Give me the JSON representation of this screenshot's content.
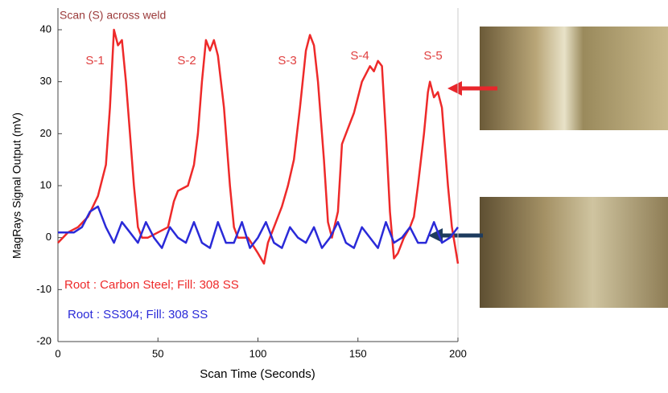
{
  "chart_data": {
    "type": "line",
    "title": "Scan (S) across weld",
    "x_label": "Scan Time (Seconds)",
    "y_label": "MagRays Signal Output (mV)",
    "annotations": [
      "S-1",
      "S-2",
      "S-3",
      "S-4",
      "S-5"
    ],
    "xlim": [
      0,
      200
    ],
    "ylim": [
      -20,
      40
    ],
    "xticks": [
      0,
      50,
      100,
      150,
      200
    ],
    "yticks": [
      -20,
      -10,
      0,
      10,
      20,
      30,
      40
    ],
    "series": [
      {
        "name": "Root : Carbon Steel; Fill: 308 SS",
        "color": "#ee2a2a",
        "x": [
          0,
          5,
          10,
          15,
          20,
          24,
          26,
          28,
          30,
          32,
          34,
          36,
          38,
          40,
          42,
          45,
          50,
          55,
          58,
          60,
          65,
          68,
          70,
          72,
          74,
          76,
          78,
          80,
          83,
          86,
          88,
          90,
          95,
          100,
          103,
          105,
          108,
          112,
          115,
          118,
          121,
          124,
          126,
          128,
          130,
          133,
          135,
          137,
          140,
          142,
          145,
          148,
          152,
          156,
          158,
          160,
          162,
          164,
          166,
          168,
          170,
          173,
          176,
          178,
          180,
          183,
          185,
          186,
          188,
          190,
          192,
          195,
          197,
          200
        ],
        "values": [
          -1,
          1,
          2,
          4,
          8,
          14,
          25,
          40,
          37,
          38,
          30,
          20,
          10,
          2,
          0,
          0,
          1,
          2,
          7,
          9,
          10,
          14,
          20,
          30,
          38,
          36,
          38,
          35,
          25,
          10,
          2,
          0,
          0,
          -3,
          -5,
          -1,
          2,
          6,
          10,
          15,
          25,
          36,
          39,
          37,
          30,
          15,
          3,
          0,
          5,
          18,
          21,
          24,
          30,
          33,
          32,
          34,
          33,
          20,
          5,
          -4,
          -3,
          0,
          2,
          4,
          10,
          20,
          28,
          30,
          27,
          28,
          25,
          10,
          2,
          -5
        ]
      },
      {
        "name": "Root : SS304; Fill: 308 SS",
        "color": "#2a2ad8",
        "x": [
          0,
          4,
          8,
          12,
          16,
          20,
          24,
          28,
          32,
          36,
          40,
          44,
          48,
          52,
          56,
          60,
          64,
          68,
          72,
          76,
          80,
          84,
          88,
          92,
          96,
          100,
          104,
          108,
          112,
          116,
          120,
          124,
          128,
          132,
          136,
          140,
          144,
          148,
          152,
          156,
          160,
          164,
          168,
          172,
          176,
          180,
          184,
          188,
          192,
          196,
          200
        ],
        "values": [
          1,
          1,
          1,
          2,
          5,
          6,
          2,
          -1,
          3,
          1,
          -1,
          3,
          0,
          -2,
          2,
          0,
          -1,
          3,
          -1,
          -2,
          3,
          -1,
          -1,
          3,
          -2,
          0,
          3,
          -1,
          -2,
          2,
          0,
          -1,
          2,
          -2,
          0,
          3,
          -1,
          -2,
          2,
          0,
          -2,
          3,
          -1,
          0,
          2,
          -1,
          -1,
          3,
          -1,
          0,
          2
        ]
      }
    ]
  }
}
